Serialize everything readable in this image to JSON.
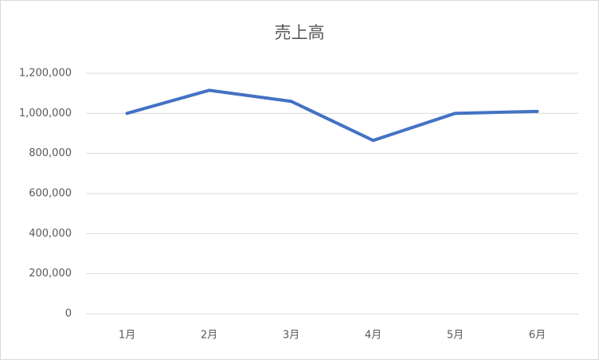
{
  "chart_data": {
    "type": "line",
    "title": "売上高",
    "categories": [
      "1月",
      "2月",
      "3月",
      "4月",
      "5月",
      "6月"
    ],
    "values": [
      1000000,
      1115000,
      1060000,
      865000,
      1000000,
      1010000
    ],
    "color": "#4472c4",
    "ylim": [
      0,
      1200000
    ],
    "yticks": [
      0,
      {
        "value": 200000,
        "label": "200,000"
      },
      {
        "value": 400000,
        "label": "400,000"
      },
      {
        "value": 600000,
        "label": "600,000"
      },
      {
        "value": 800000,
        "label": "800,000"
      },
      {
        "value": 1000000,
        "label": "1,000,000"
      },
      {
        "value": 1200000,
        "label": "1,200,000"
      }
    ],
    "grid": true
  }
}
